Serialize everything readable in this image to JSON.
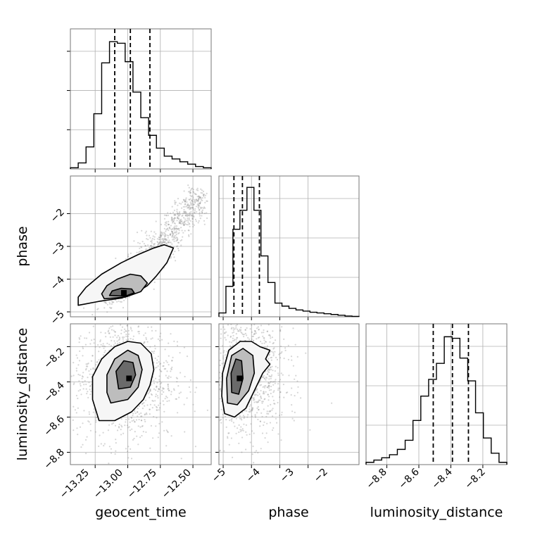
{
  "chart_data": {
    "type": "corner",
    "parameters": [
      "geocent_time",
      "phase",
      "luminosity_distance"
    ],
    "grid": true,
    "histograms": [
      {
        "param": "geocent_time",
        "range": [
          -13.44,
          -12.36
        ],
        "quantiles": [
          -13.1,
          -12.98,
          -12.83
        ],
        "counts": [
          0.3,
          1.5,
          5.5,
          13.8,
          26.5,
          31.8,
          31.4,
          26.8,
          19.2,
          12.8,
          8.4,
          5.2,
          3.2,
          2.5,
          1.8,
          1.2,
          0.6,
          0.3
        ],
        "ymax": 35
      },
      {
        "param": "phase",
        "range": [
          -5.15,
          -0.2
        ],
        "quantiles": [
          -4.62,
          -4.32,
          -3.72
        ],
        "counts": [
          0.5,
          4.0,
          11.5,
          14.0,
          17.0,
          14.0,
          8.0,
          4.5,
          1.8,
          1.4,
          1.1,
          0.9,
          0.75,
          0.6,
          0.5,
          0.4,
          0.3,
          0.2,
          0.1,
          0.05
        ],
        "ymax": 18.5
      },
      {
        "param": "luminosity_distance",
        "range": [
          -8.93,
          -8.05
        ],
        "quantiles": [
          -8.51,
          -8.39,
          -8.29
        ],
        "counts": [
          0.3,
          0.6,
          0.9,
          1.3,
          2.0,
          3.2,
          5.8,
          9.0,
          11.2,
          13.3,
          16.8,
          16.6,
          14.0,
          11.0,
          6.8,
          3.5,
          1.5,
          0.3
        ],
        "ymax": 18.5
      }
    ],
    "joint": [
      {
        "x": "geocent_time",
        "y": "phase",
        "xrange": [
          -13.44,
          -12.36
        ],
        "yrange": [
          -5.15,
          -0.85
        ],
        "peak": [
          -13.03,
          -4.42
        ],
        "contours": [
          [
            [
              -13.38,
              -4.8
            ],
            [
              -13.22,
              -4.68
            ],
            [
              -13.05,
              -4.58
            ],
            [
              -12.95,
              -4.45
            ],
            [
              -12.85,
              -4.2
            ],
            [
              -12.78,
              -3.9
            ],
            [
              -12.7,
              -3.5
            ],
            [
              -12.65,
              -3.05
            ],
            [
              -12.72,
              -2.95
            ],
            [
              -12.8,
              -3.05
            ],
            [
              -12.92,
              -3.25
            ],
            [
              -13.05,
              -3.5
            ],
            [
              -13.2,
              -3.85
            ],
            [
              -13.32,
              -4.25
            ],
            [
              -13.38,
              -4.55
            ]
          ],
          [
            [
              -13.18,
              -4.6
            ],
            [
              -13.02,
              -4.55
            ],
            [
              -12.9,
              -4.38
            ],
            [
              -12.85,
              -4.12
            ],
            [
              -12.9,
              -3.9
            ],
            [
              -12.98,
              -3.85
            ],
            [
              -13.08,
              -4.0
            ],
            [
              -13.16,
              -4.2
            ],
            [
              -13.2,
              -4.45
            ]
          ],
          [
            [
              -13.14,
              -4.5
            ],
            [
              -13.02,
              -4.52
            ],
            [
              -12.95,
              -4.42
            ],
            [
              -12.97,
              -4.3
            ],
            [
              -13.05,
              -4.28
            ],
            [
              -13.12,
              -4.36
            ]
          ]
        ]
      },
      {
        "x": "geocent_time",
        "y": "luminosity_distance",
        "xrange": [
          -13.44,
          -12.36
        ],
        "yrange": [
          -8.87,
          -8.07
        ],
        "peak": [
          -12.99,
          -8.38
        ],
        "contours": [
          [
            [
              -13.22,
              -8.62
            ],
            [
              -13.1,
              -8.62
            ],
            [
              -12.97,
              -8.57
            ],
            [
              -12.88,
              -8.5
            ],
            [
              -12.83,
              -8.42
            ],
            [
              -12.8,
              -8.33
            ],
            [
              -12.82,
              -8.24
            ],
            [
              -12.9,
              -8.18
            ],
            [
              -13.0,
              -8.17
            ],
            [
              -13.1,
              -8.2
            ],
            [
              -13.2,
              -8.27
            ],
            [
              -13.27,
              -8.37
            ],
            [
              -13.27,
              -8.5
            ]
          ],
          [
            [
              -13.13,
              -8.52
            ],
            [
              -13.0,
              -8.5
            ],
            [
              -12.92,
              -8.43
            ],
            [
              -12.89,
              -8.33
            ],
            [
              -12.92,
              -8.25
            ],
            [
              -13.0,
              -8.22
            ],
            [
              -13.1,
              -8.27
            ],
            [
              -13.16,
              -8.36
            ],
            [
              -13.16,
              -8.46
            ]
          ],
          [
            [
              -13.07,
              -8.44
            ],
            [
              -12.98,
              -8.43
            ],
            [
              -12.94,
              -8.36
            ],
            [
              -12.96,
              -8.29
            ],
            [
              -13.03,
              -8.28
            ],
            [
              -13.09,
              -8.34
            ]
          ]
        ]
      },
      {
        "x": "phase",
        "y": "luminosity_distance",
        "xrange": [
          -5.15,
          -0.2
        ],
        "yrange": [
          -8.87,
          -8.07
        ],
        "peak": [
          -4.42,
          -8.38
        ],
        "contours": [
          [
            [
              -4.95,
              -8.58
            ],
            [
              -4.6,
              -8.6
            ],
            [
              -4.2,
              -8.55
            ],
            [
              -3.9,
              -8.45
            ],
            [
              -3.6,
              -8.35
            ],
            [
              -3.35,
              -8.3
            ],
            [
              -3.5,
              -8.27
            ],
            [
              -3.35,
              -8.22
            ],
            [
              -3.7,
              -8.2
            ],
            [
              -4.0,
              -8.17
            ],
            [
              -4.4,
              -8.17
            ],
            [
              -4.8,
              -8.22
            ],
            [
              -5.02,
              -8.35
            ],
            [
              -5.05,
              -8.48
            ]
          ],
          [
            [
              -4.85,
              -8.52
            ],
            [
              -4.5,
              -8.53
            ],
            [
              -4.1,
              -8.45
            ],
            [
              -3.9,
              -8.35
            ],
            [
              -3.95,
              -8.25
            ],
            [
              -4.3,
              -8.21
            ],
            [
              -4.7,
              -8.25
            ],
            [
              -4.88,
              -8.38
            ]
          ],
          [
            [
              -4.7,
              -8.46
            ],
            [
              -4.45,
              -8.47
            ],
            [
              -4.3,
              -8.38
            ],
            [
              -4.35,
              -8.28
            ],
            [
              -4.55,
              -8.27
            ],
            [
              -4.72,
              -8.35
            ]
          ]
        ]
      }
    ],
    "ticks": {
      "geocent_time": [
        -13.25,
        -13.0,
        -12.75,
        -12.5
      ],
      "phase": [
        -5,
        -4,
        -3,
        -2
      ],
      "luminosity_distance": [
        -8.8,
        -8.6,
        -8.4,
        -8.2
      ]
    },
    "tick_labels": {
      "geocent_time": [
        "−13.25",
        "−13.00",
        "−12.75",
        "−12.50"
      ],
      "phase_x": [
        "−5",
        "−4",
        "−3",
        "−2"
      ],
      "phase_y": [
        "−2",
        "−3",
        "−4",
        "−5"
      ],
      "luminosity_distance_x": [
        "−8.8",
        "−8.6",
        "−8.4",
        "−8.2"
      ],
      "luminosity_distance_y": [
        "−8.2",
        "−8.4",
        "−8.6",
        "−8.8"
      ]
    },
    "xlabels": [
      "geocent_time",
      "phase",
      "luminosity_distance"
    ],
    "ylabels": [
      "phase",
      "luminosity_distance"
    ],
    "colors": {
      "line": "#000000",
      "scatter": "#8a8a8a",
      "grid": "#b0b0b0",
      "frame": "#777777"
    }
  }
}
